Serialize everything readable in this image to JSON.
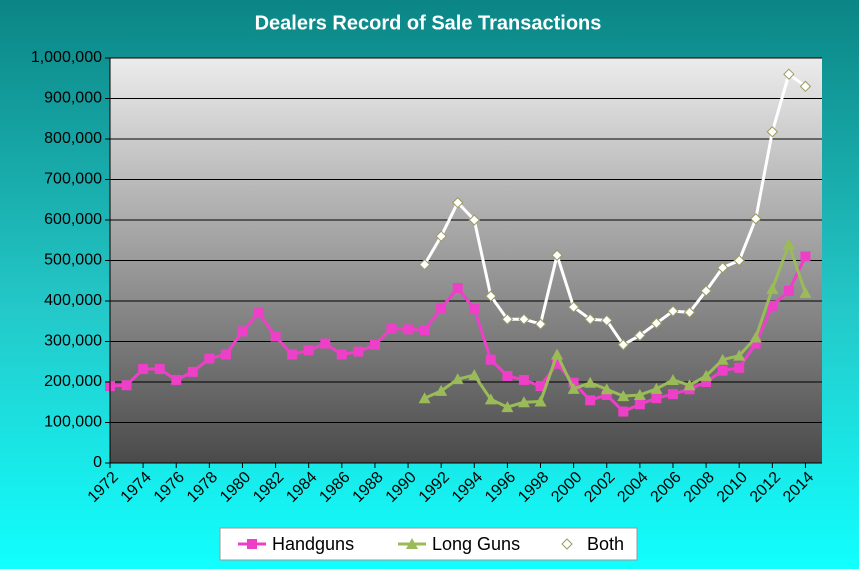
{
  "chart_data": {
    "type": "line",
    "title": "Dealers Record of Sale Transactions",
    "x": [
      1972,
      1973,
      1974,
      1975,
      1976,
      1977,
      1978,
      1979,
      1980,
      1981,
      1982,
      1983,
      1984,
      1985,
      1986,
      1987,
      1988,
      1989,
      1990,
      1991,
      1992,
      1993,
      1994,
      1995,
      1996,
      1997,
      1998,
      1999,
      2000,
      2001,
      2002,
      2003,
      2004,
      2005,
      2006,
      2007,
      2008,
      2009,
      2010,
      2011,
      2012,
      2013,
      2014
    ],
    "xlim": [
      1972,
      2015
    ],
    "xticks": [
      1972,
      1974,
      1976,
      1978,
      1980,
      1982,
      1984,
      1986,
      1988,
      1990,
      1992,
      1994,
      1996,
      1998,
      2000,
      2002,
      2004,
      2006,
      2008,
      2010,
      2012,
      2014
    ],
    "ylim": [
      0,
      1000000
    ],
    "yticks": [
      0,
      {
        "value": 100000,
        "label": "100,000"
      },
      {
        "value": 200000,
        "label": "200,000"
      },
      {
        "value": 300000,
        "label": "300,000"
      },
      {
        "value": 400000,
        "label": "400,000"
      },
      {
        "value": 500000,
        "label": "500,000"
      },
      {
        "value": 600000,
        "label": "600,000"
      },
      {
        "value": 700000,
        "label": "700,000"
      },
      {
        "value": 800000,
        "label": "800,000"
      },
      {
        "value": 900000,
        "label": "900,000"
      },
      {
        "value": 1000000,
        "label": "1,000,000"
      }
    ],
    "grid": true,
    "legend": "bottom",
    "series": [
      {
        "name": "Handguns",
        "color": "#ee3fc8",
        "marker": "square",
        "values": [
          190000,
          192000,
          232000,
          232000,
          205000,
          225000,
          258000,
          268000,
          325000,
          370000,
          312000,
          268000,
          278000,
          295000,
          268000,
          275000,
          292000,
          332000,
          330000,
          328000,
          382000,
          432000,
          380000,
          255000,
          215000,
          205000,
          190000,
          245000,
          198000,
          155000,
          168000,
          127000,
          145000,
          160000,
          170000,
          182000,
          200000,
          228000,
          235000,
          295000,
          388000,
          425000,
          510000
        ]
      },
      {
        "name": "Long Guns",
        "color": "#9bbb59",
        "marker": "triangle",
        "values": [
          null,
          null,
          null,
          null,
          null,
          null,
          null,
          null,
          null,
          null,
          null,
          null,
          null,
          null,
          null,
          null,
          null,
          null,
          null,
          160000,
          178000,
          207000,
          217000,
          157000,
          138000,
          150000,
          152000,
          268000,
          183000,
          198000,
          182000,
          165000,
          168000,
          183000,
          205000,
          192000,
          215000,
          255000,
          265000,
          310000,
          430000,
          540000,
          420000
        ]
      },
      {
        "name": "Both",
        "color": "#ffffff",
        "marker": "diamond",
        "values": [
          null,
          null,
          null,
          null,
          null,
          null,
          null,
          null,
          null,
          null,
          null,
          null,
          null,
          null,
          null,
          null,
          null,
          null,
          null,
          490000,
          560000,
          643000,
          600000,
          412000,
          355000,
          355000,
          343000,
          513000,
          385000,
          355000,
          352000,
          292000,
          315000,
          345000,
          375000,
          372000,
          425000,
          482000,
          500000,
          603000,
          818000,
          960000,
          930000
        ]
      }
    ]
  }
}
